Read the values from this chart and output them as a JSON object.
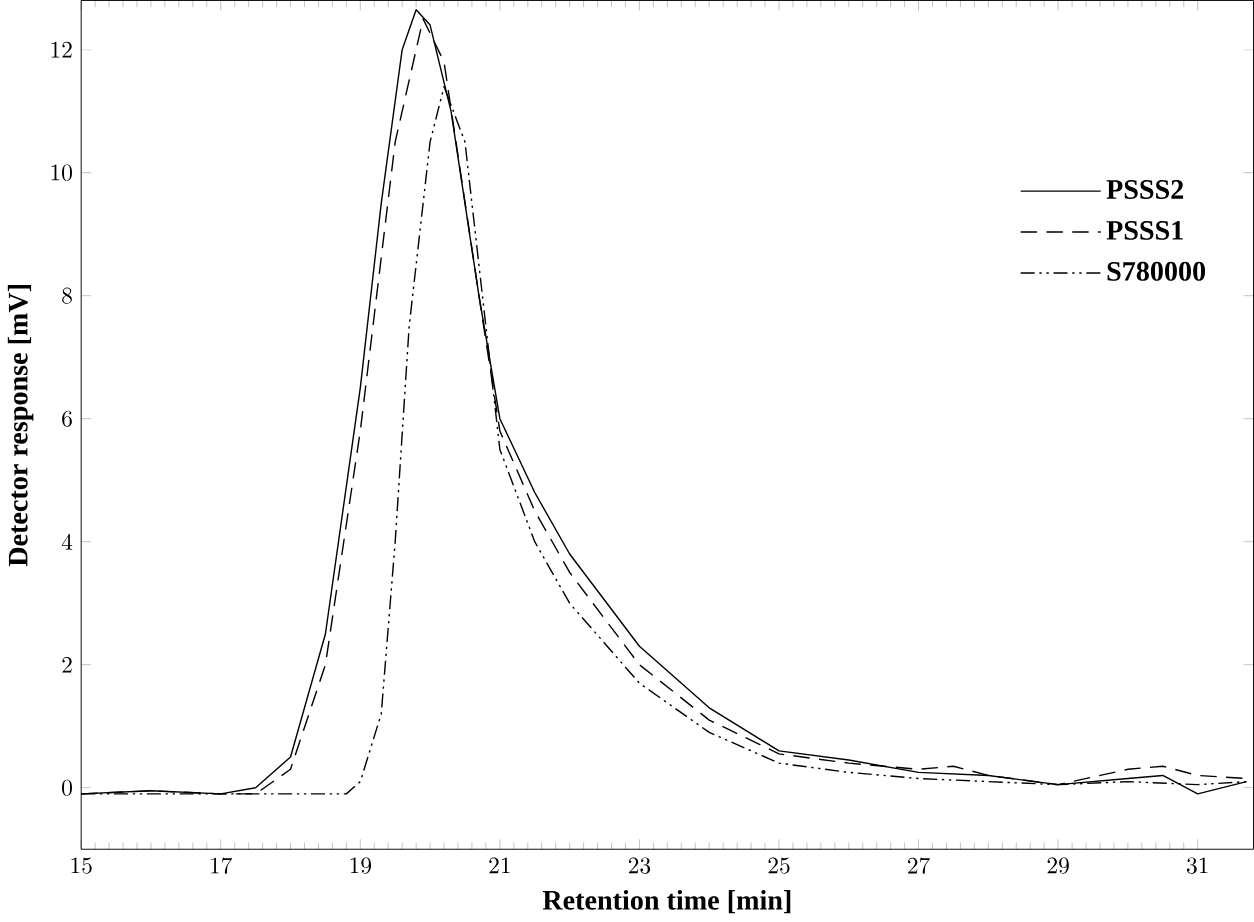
{
  "chart_data": {
    "type": "line",
    "xlabel": "Retention time [min]",
    "ylabel": "Detector response [mV]",
    "xlim": [
      15,
      31.8
    ],
    "ylim": [
      -1,
      12.8
    ],
    "xticks": [
      15,
      17,
      19,
      21,
      23,
      25,
      27,
      29,
      31
    ],
    "yticks": [
      0,
      2,
      4,
      6,
      8,
      10,
      12
    ],
    "legend": "top right",
    "grid": false,
    "marker": "none",
    "series": [
      {
        "name": "PSSS2",
        "color": "#000000",
        "line_style": "solid",
        "x": [
          15,
          16,
          17,
          17.5,
          18,
          18.5,
          19,
          19.3,
          19.6,
          19.8,
          20,
          20.3,
          20.7,
          21,
          21.5,
          22,
          23,
          24,
          25,
          26,
          27,
          28,
          29,
          30,
          30.5,
          31,
          31.7
        ],
        "values": [
          -0.1,
          -0.05,
          -0.1,
          0,
          0.5,
          2.5,
          6.5,
          9.5,
          12,
          12.65,
          12.4,
          11,
          8,
          6,
          4.8,
          3.8,
          2.3,
          1.3,
          0.6,
          0.45,
          0.25,
          0.2,
          0.05,
          0.15,
          0.2,
          -0.1,
          0.1
        ]
      },
      {
        "name": "PSSS1",
        "color": "#000000",
        "line_style": "dashed",
        "x": [
          15,
          16,
          17,
          17.5,
          18,
          18.5,
          19,
          19.5,
          19.9,
          20.2,
          20.7,
          21,
          21.5,
          22,
          23,
          24,
          25,
          26,
          27,
          27.5,
          28,
          29,
          30,
          30.5,
          31,
          31.7
        ],
        "values": [
          -0.1,
          -0.05,
          -0.1,
          -0.1,
          0.3,
          2,
          5.8,
          10.5,
          12.5,
          11.8,
          8,
          5.8,
          4.5,
          3.5,
          2,
          1.1,
          0.55,
          0.4,
          0.3,
          0.35,
          0.2,
          0.05,
          0.3,
          0.35,
          0.2,
          0.15
        ]
      },
      {
        "name": "S780000",
        "color": "#000000",
        "line_style": "dashdot",
        "x": [
          15,
          16,
          17,
          18,
          18.8,
          19,
          19.3,
          19.5,
          19.7,
          20,
          20.2,
          20.5,
          21,
          21.5,
          22,
          23,
          24,
          25,
          26,
          27,
          28,
          29,
          30,
          31,
          31.7
        ],
        "values": [
          -0.1,
          -0.1,
          -0.1,
          -0.1,
          -0.1,
          0.1,
          1.2,
          4,
          7.5,
          10.5,
          11.4,
          10.5,
          5.5,
          4,
          3,
          1.7,
          0.9,
          0.4,
          0.25,
          0.15,
          0.1,
          0.05,
          0.1,
          0.05,
          0.1
        ]
      }
    ]
  }
}
